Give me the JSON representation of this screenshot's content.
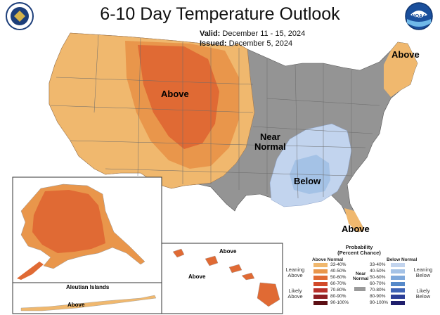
{
  "title": "6-10 Day Temperature Outlook",
  "valid_label": "Valid:",
  "valid_value": "December 11 - 15, 2024",
  "issued_label": "Issued:",
  "issued_value": "December 5, 2024",
  "labels": {
    "above_central": "Above",
    "above_northeast": "Above",
    "near_normal": "Near\nNormal",
    "below": "Below",
    "above_florida": "Above",
    "above_hawaii_1": "Above",
    "above_hawaii_2": "Above",
    "aleutian_title": "Aleutian Islands",
    "above_aleutian": "Above"
  },
  "logos": {
    "left": "Department of Commerce seal",
    "right": "NOAA"
  },
  "legend": {
    "title_line1": "Probability",
    "title_line2": "(Percent Chance)",
    "above_header": "Above Normal",
    "below_header": "Below Normal",
    "near_header": "Near\nNormal",
    "leaning_above": "Leaning\nAbove",
    "likely_above": "Likely\nAbove",
    "leaning_below": "Leaning\nBelow",
    "likely_below": "Likely\nBelow",
    "above_bins": [
      "33-40%",
      "40-50%",
      "50-60%",
      "60-70%",
      "70-80%",
      "80-90%",
      "90-100%"
    ],
    "below_bins": [
      "33-40%",
      "40-50%",
      "50-60%",
      "60-70%",
      "70-80%",
      "80-90%",
      "90-100%"
    ],
    "above_colors": [
      "#f0b86e",
      "#e9964b",
      "#e06a34",
      "#d24a2a",
      "#b8302a",
      "#8e1d22",
      "#5c0f15"
    ],
    "below_colors": [
      "#c2d4ee",
      "#a4c2e6",
      "#7ea8db",
      "#5689c9",
      "#3f64b5",
      "#2c3f97",
      "#1f1e6c"
    ],
    "near_color": "#9a9a9a"
  },
  "colors": {
    "normal_gray": "#949494",
    "leaning_above": "#f0b86e",
    "above_40_50": "#e9964b",
    "above_50_60": "#e06a34",
    "leaning_below": "#c2d4ee",
    "below_40_50": "#a4c2e6"
  }
}
